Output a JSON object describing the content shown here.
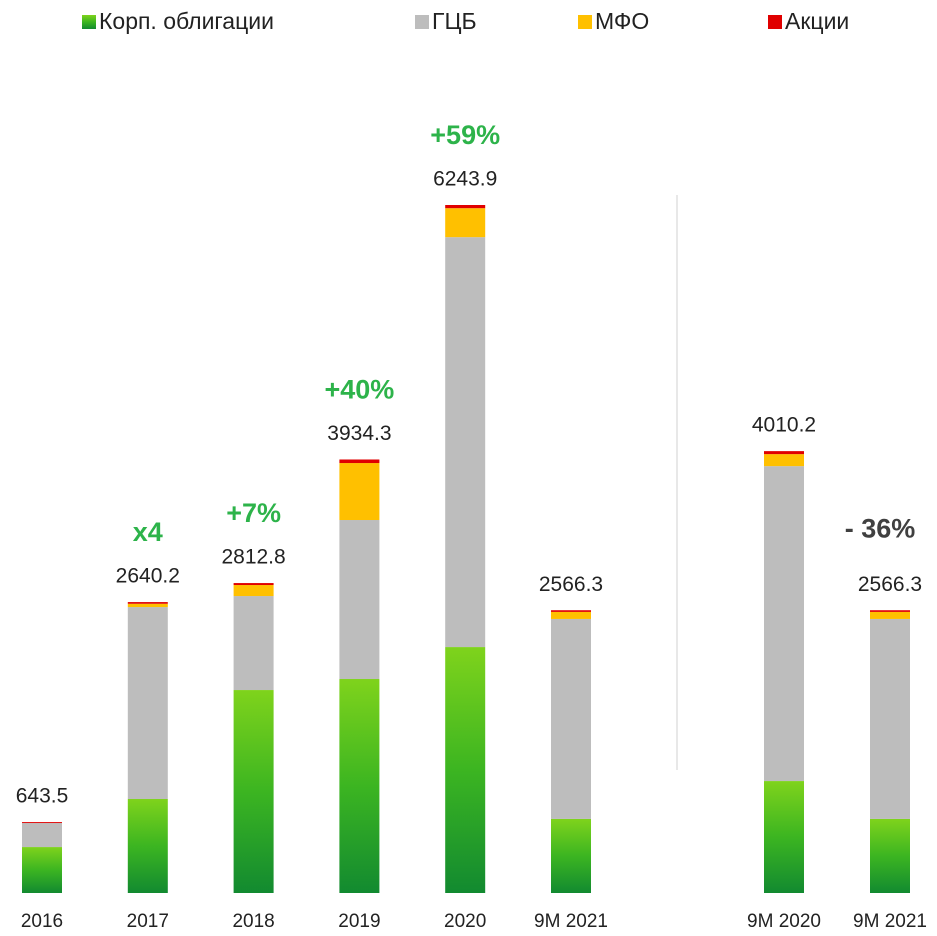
{
  "chart_data": {
    "type": "stacked_bar",
    "categories": [
      "2016",
      "2017",
      "2018",
      "2019",
      "2020",
      "9M 2021",
      "9M 2020",
      "9M 2021"
    ],
    "series": [
      {
        "name": "Корп. облигации",
        "color": "#3cb521",
        "values": [
          417,
          853,
          1842,
          1942,
          2232,
          672,
          1016,
          672
        ]
      },
      {
        "name": "ГЦБ",
        "color": "#bdbdbd",
        "values": [
          218,
          1742,
          853,
          1443,
          3720,
          1815,
          2858,
          1815
        ]
      },
      {
        "name": "МФО",
        "color": "#ffc000",
        "values": [
          0,
          30,
          100,
          517,
          263,
          64,
          109,
          64
        ]
      },
      {
        "name": "Акции",
        "color": "#e00000",
        "values": [
          8.5,
          15.2,
          17.8,
          32.3,
          28.9,
          15.3,
          27.2,
          15.3
        ]
      }
    ],
    "totals": [
      643.5,
      2640.2,
      2812.8,
      3934.3,
      6243.9,
      2566.3,
      4010.2,
      2566.3
    ],
    "annotations": [
      null,
      {
        "text": "x4",
        "color": "#2db34a"
      },
      {
        "text": "+7%",
        "color": "#2db34a"
      },
      {
        "text": "+40%",
        "color": "#2db34a"
      },
      {
        "text": "+59%",
        "color": "#2db34a"
      },
      null,
      null,
      {
        "text": "- 36%",
        "color": "#404040"
      }
    ]
  }
}
